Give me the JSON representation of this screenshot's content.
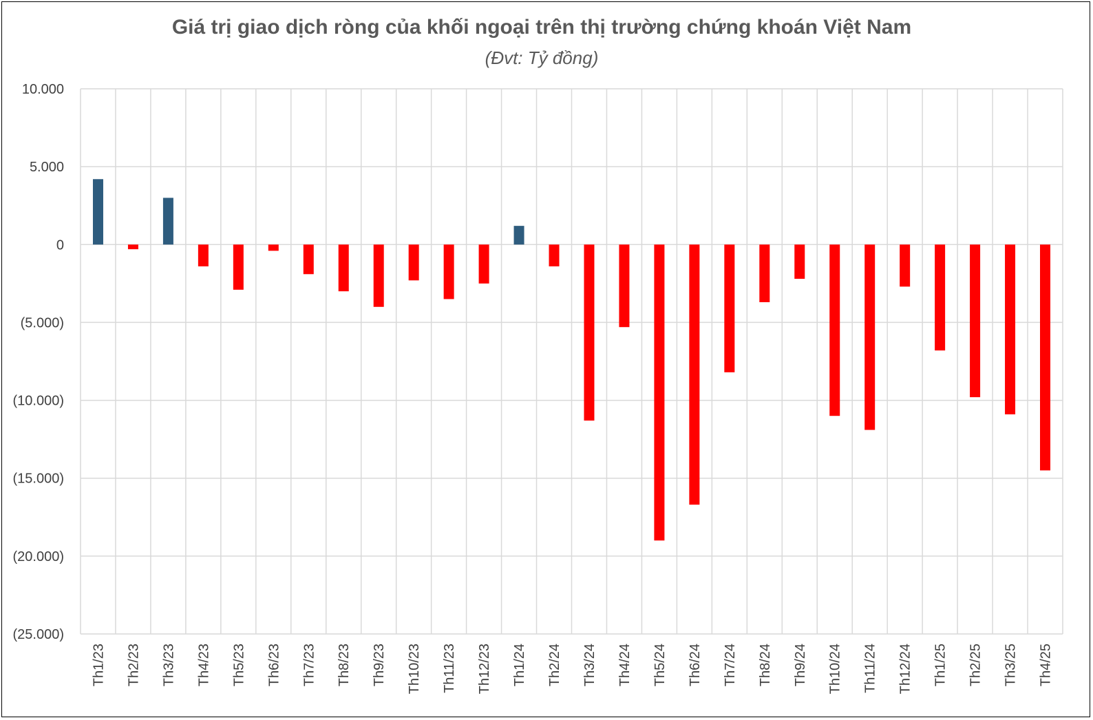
{
  "title": "Giá trị giao dịch ròng của khối ngoại trên thị trường chứng khoán Việt Nam",
  "subtitle": "(Đvt: Tỷ đồng)",
  "colors": {
    "positive": "#2E5C7E",
    "negative": "#FF0000",
    "grid": "#D9D9D9",
    "text": "#595959"
  },
  "chart_data": {
    "type": "bar",
    "title": "Giá trị giao dịch ròng của khối ngoại trên thị trường chứng khoán Việt Nam",
    "subtitle": "(Đvt: Tỷ đồng)",
    "xlabel": "",
    "ylabel": "",
    "ylim": [
      -25000,
      10000
    ],
    "yticks": [
      10000,
      5000,
      0,
      -5000,
      -10000,
      -15000,
      -20000,
      -25000
    ],
    "ytick_labels": [
      "10.000",
      "5.000",
      "0",
      "(5.000)",
      "(10.000)",
      "(15.000)",
      "(20.000)",
      "(25.000)"
    ],
    "grid": true,
    "legend": "none",
    "categories": [
      "Th1/23",
      "Th2/23",
      "Th3/23",
      "Th4/23",
      "Th5/23",
      "Th6/23",
      "Th7/23",
      "Th8/23",
      "Th9/23",
      "Th10/23",
      "Th11/23",
      "Th12/23",
      "Th1/24",
      "Th2/24",
      "Th3/24",
      "Th4/24",
      "Th5/24",
      "Th6/24",
      "Th7/24",
      "Th8/24",
      "Th9/24",
      "Th10/24",
      "Th11/24",
      "Th12/24",
      "Th1/25",
      "Th2/25",
      "Th3/25",
      "Th4/25"
    ],
    "values": [
      4200,
      -300,
      3000,
      -1400,
      -2900,
      -400,
      -1900,
      -3000,
      -4000,
      -2300,
      -3500,
      -2500,
      1200,
      -1400,
      -11300,
      -5300,
      -19000,
      -16700,
      -8200,
      -3700,
      -2200,
      -11000,
      -11900,
      -2700,
      -6800,
      -9800,
      -10900,
      -14500
    ]
  }
}
